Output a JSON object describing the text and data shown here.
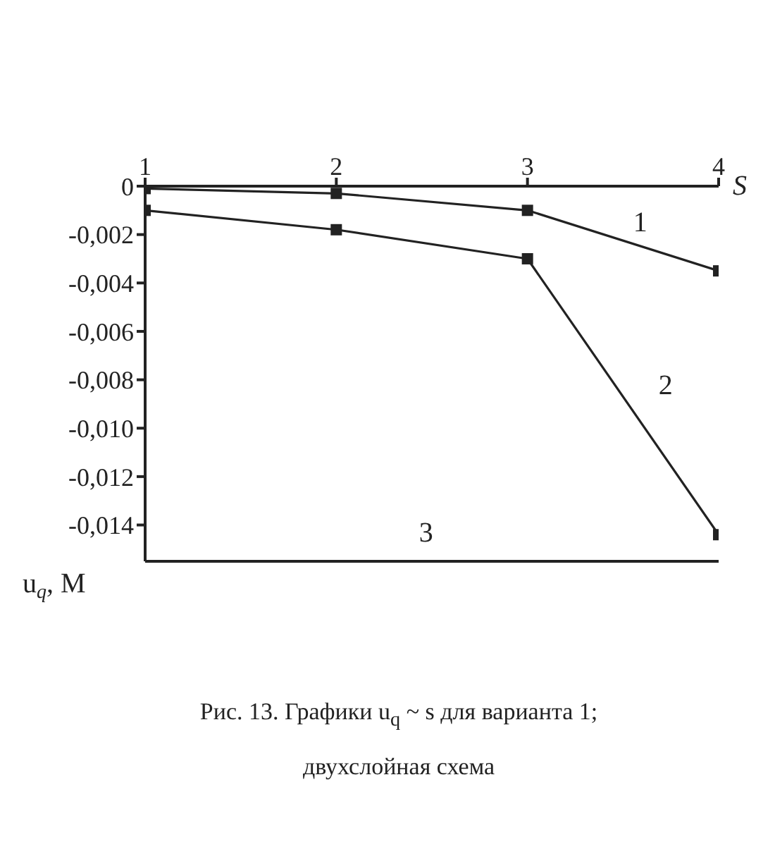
{
  "chart_data": {
    "type": "line",
    "title": "Рис. 13. Графики u$_{q}$ ~ s  для варианта 1;\nдвухслойная схема",
    "xlabel": "S",
    "ylabel": "u$_{q}$, М",
    "annotations": [
      "3"
    ],
    "x": [
      1,
      2,
      3,
      4
    ],
    "series": [
      {
        "name": "1",
        "color": "#222222",
        "values": [
          -0.0001,
          -0.0003,
          -0.001,
          -0.0035
        ]
      },
      {
        "name": "2",
        "color": "#222222",
        "values": [
          -0.001,
          -0.0018,
          -0.003,
          -0.0144
        ]
      }
    ],
    "xlim": [
      1,
      4
    ],
    "xticks": [
      1,
      2,
      3,
      4
    ],
    "ylim": [
      -0.0155,
      0
    ],
    "yticks": [
      {
        "value": 0,
        "label": "0"
      },
      {
        "value": -0.002,
        "label": "-0,002"
      },
      {
        "value": -0.004,
        "label": "-0,004"
      },
      {
        "value": -0.006,
        "label": "-0,006"
      },
      {
        "value": -0.008,
        "label": "-0,008"
      },
      {
        "value": -0.01,
        "label": "-0,010"
      },
      {
        "value": -0.012,
        "label": "-0,012"
      },
      {
        "value": -0.014,
        "label": "-0,014"
      }
    ],
    "marker": "square",
    "line_style": "solid",
    "grid": false,
    "legend": false
  }
}
